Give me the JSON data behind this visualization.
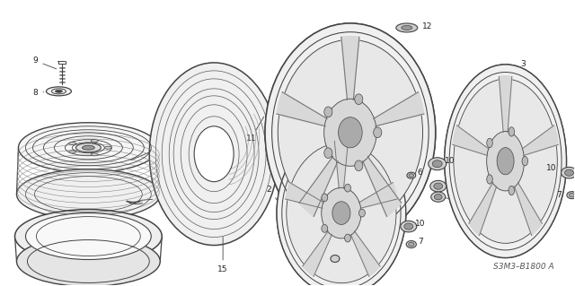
{
  "diagram_code": "S3M3–B1800 A",
  "background_color": "#ffffff",
  "line_color": "#444444",
  "text_color": "#222222",
  "fig_width": 6.4,
  "fig_height": 3.19,
  "dpi": 100
}
